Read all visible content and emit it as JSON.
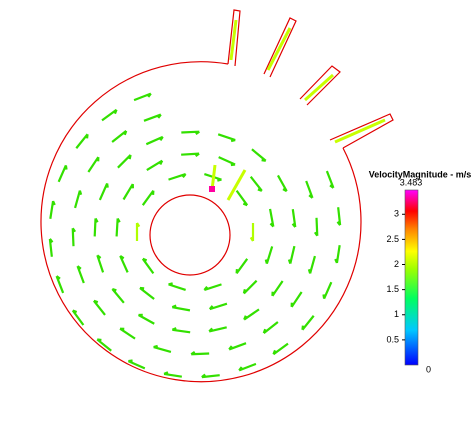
{
  "colorbar": {
    "title": "VelocityMagnitude - m/s",
    "min": 0,
    "max": 3.483,
    "max_label": "3.483",
    "ticks": [
      0.5,
      1,
      1.5,
      2,
      2.5,
      3
    ]
  }
}
